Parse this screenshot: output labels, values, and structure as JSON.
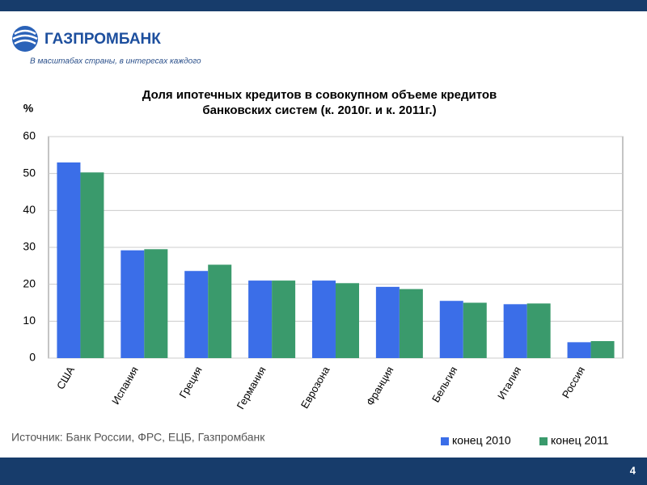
{
  "header": {
    "brand": "ГАЗПРОМБАНК",
    "tagline": "В масштабах страны, в интересах каждого"
  },
  "chart_data": {
    "type": "bar",
    "title": [
      "Доля ипотечных кредитов в совокупном объеме кредитов",
      "банковских систем (к. 2010г. и к. 2011г.)"
    ],
    "y_label": "%",
    "categories": [
      "США",
      "Испания",
      "Греция",
      "Германия",
      "Еврозона",
      "Франция",
      "Бельгия",
      "Италия",
      "Россия"
    ],
    "series": [
      {
        "name": "конец 2010",
        "color": "#3b6ee8",
        "values": [
          53,
          29.2,
          23.6,
          21,
          21,
          19.3,
          15.5,
          14.6,
          4.3
        ]
      },
      {
        "name": "конец 2011",
        "color": "#3a9a6c",
        "values": [
          50.3,
          29.5,
          25.3,
          21,
          20.3,
          18.7,
          15,
          14.8,
          4.6
        ]
      }
    ],
    "ylim": [
      0,
      60
    ],
    "yticks": [
      0,
      10,
      20,
      30,
      40,
      50,
      60
    ],
    "grid": true,
    "legend": "bottom-right",
    "source": "Источник: Банк России, ФРС, ЕЦБ, Газпромбанк"
  },
  "footer": {
    "page": "4"
  }
}
